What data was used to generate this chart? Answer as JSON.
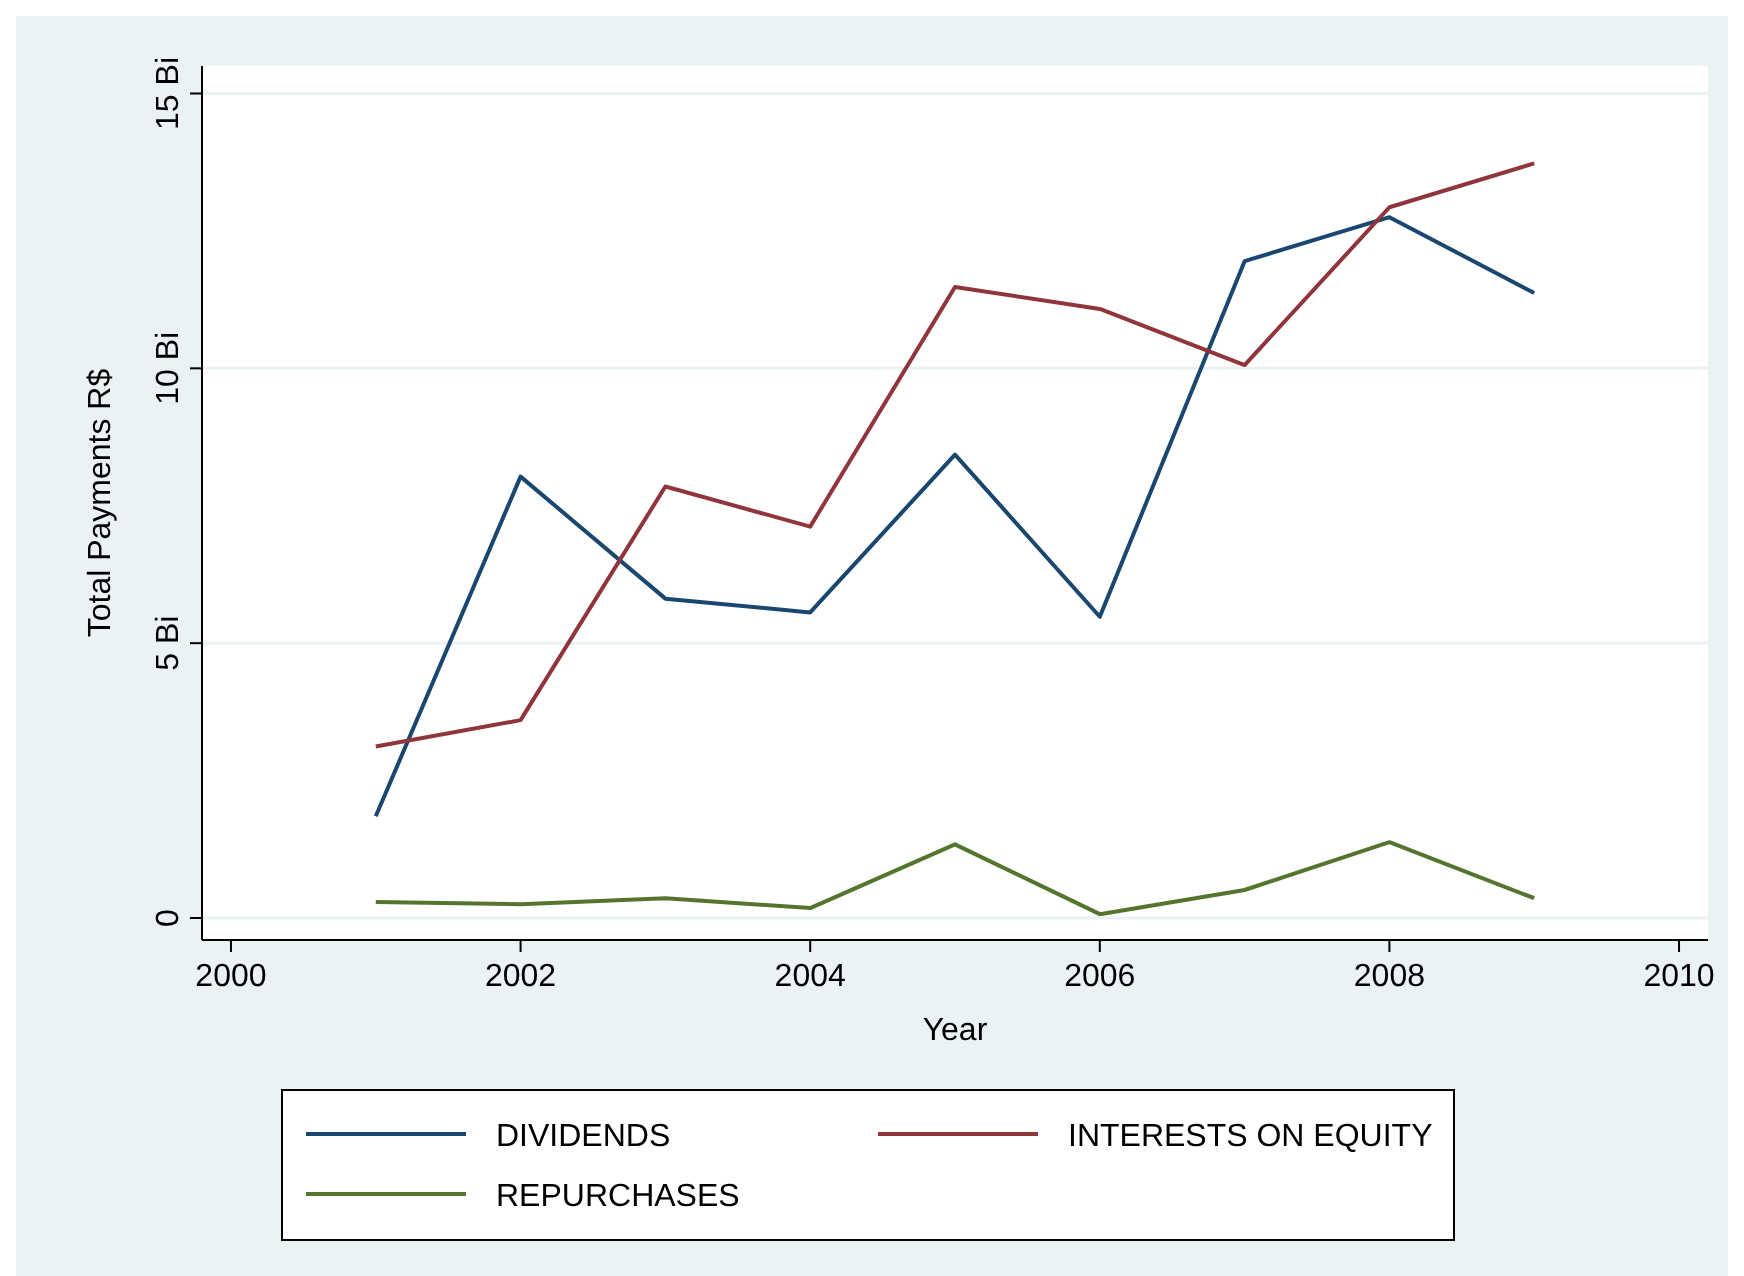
{
  "chart_data": {
    "type": "line",
    "xlabel": "Year",
    "ylabel": "Total Payments R$",
    "x": [
      2001,
      2002,
      2003,
      2004,
      2005,
      2006,
      2007,
      2008,
      2009
    ],
    "xlim": [
      1999.8,
      2010.2
    ],
    "xticks": [
      2000,
      2002,
      2004,
      2006,
      2008,
      2010
    ],
    "ylim": [
      -0.4,
      15.5
    ],
    "yticks": [
      0,
      {
        "value": 5,
        "label": "5 Bi"
      },
      {
        "value": 10,
        "label": "10 Bi"
      },
      {
        "value": 15,
        "label": "15 Bi"
      }
    ],
    "grid": "y",
    "legend": "bottom",
    "marker": "none",
    "line_style": "solid",
    "series": [
      {
        "name": "DIVIDENDS",
        "color": "#1a476f",
        "values": [
          1.85,
          8.03,
          5.81,
          5.56,
          8.43,
          5.48,
          11.95,
          12.75,
          11.37
        ]
      },
      {
        "name": "INTERESTS ON EQUITY",
        "color": "#90353b",
        "values": [
          3.12,
          3.6,
          7.85,
          7.12,
          11.48,
          11.08,
          10.06,
          12.93,
          13.73
        ]
      },
      {
        "name": "REPURCHASES",
        "color": "#55752f",
        "values": [
          0.29,
          0.25,
          0.36,
          0.18,
          1.34,
          0.07,
          0.51,
          1.38,
          0.36
        ]
      }
    ]
  }
}
